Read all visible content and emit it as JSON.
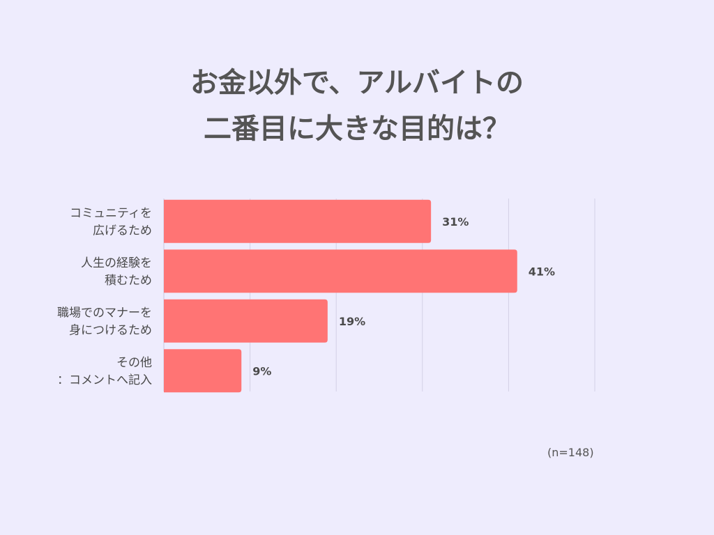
{
  "title_lines": [
    "お金以外で、アルバイトの",
    "二番目に大きな目的は？"
  ],
  "note": "(n=148)",
  "chart_data": {
    "type": "bar",
    "orientation": "horizontal",
    "categories": [
      [
        "コミュニティを",
        "広げるため"
      ],
      [
        "人生の経験を",
        "積むため"
      ],
      [
        "職場でのマナーを",
        "身につけるため"
      ],
      [
        "その他",
        "：コメントへ記入"
      ]
    ],
    "values": [
      31,
      41,
      19,
      9
    ],
    "value_labels": [
      "31%",
      "41%",
      "19%",
      "9%"
    ],
    "xlim": [
      0,
      50
    ],
    "grid": true,
    "bar_color": "#ff7474"
  }
}
